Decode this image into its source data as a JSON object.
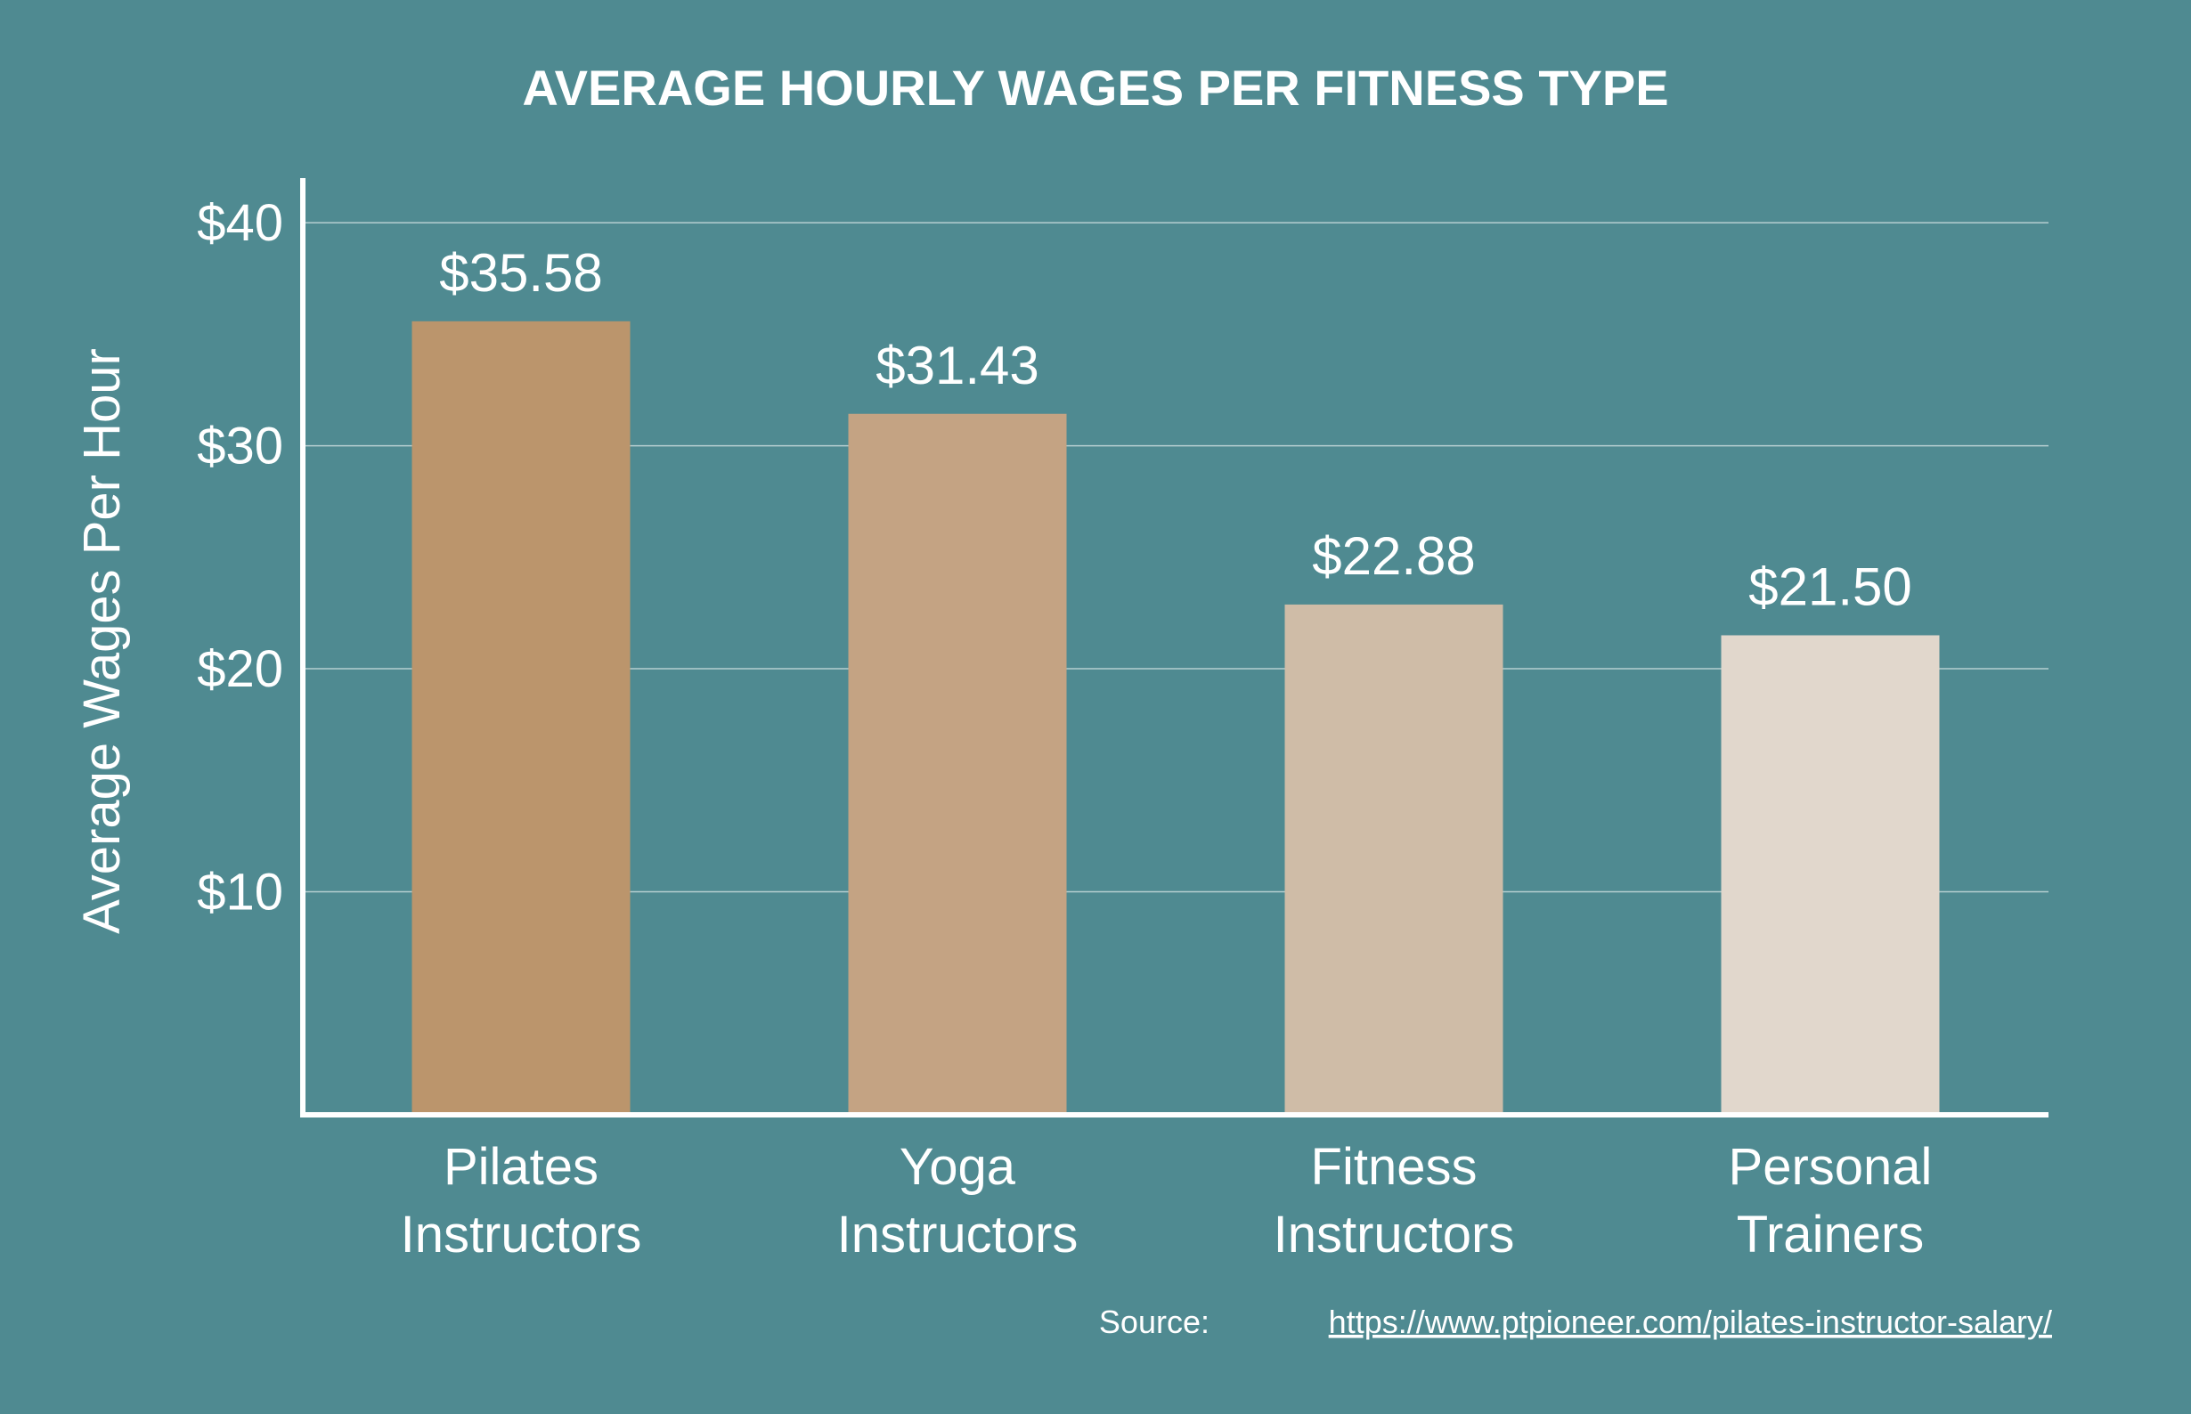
{
  "chart_data": {
    "type": "bar",
    "title": "AVERAGE HOURLY WAGES PER FITNESS TYPE",
    "xlabel": "",
    "ylabel": "Average Wages Per Hour",
    "ylim": [
      0,
      42
    ],
    "yticks": [
      10,
      20,
      30,
      40
    ],
    "ytick_labels": [
      "$10",
      "$20",
      "$30",
      "$40"
    ],
    "grid": true,
    "categories": [
      [
        "Pilates",
        "Instructors"
      ],
      [
        "Yoga",
        "Instructors"
      ],
      [
        "Fitness",
        "Instructors"
      ],
      [
        "Personal",
        "Trainers"
      ]
    ],
    "values": [
      35.58,
      31.43,
      22.88,
      21.5
    ],
    "value_labels": [
      "$35.58",
      "$31.43",
      "$22.88",
      "$21.50"
    ],
    "bar_colors": [
      "#bb956c",
      "#c4a383",
      "#cfbca7",
      "#e1d7cc"
    ]
  },
  "source": {
    "prefix": "Source:",
    "url_text": "https://www.ptpioneer.com/pilates-instructor-salary/"
  }
}
